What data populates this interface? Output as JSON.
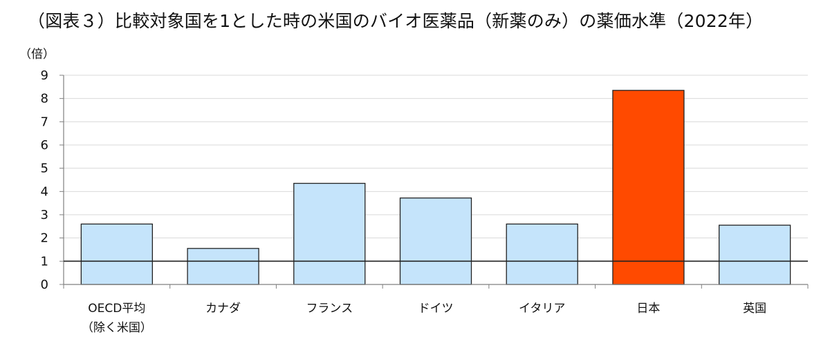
{
  "chart_data": {
    "type": "bar",
    "title": "（図表３）比較対象国を1とした時の米国のバイオ医薬品（新薬のみ）の薬価水準（2022年）",
    "ylabel": "（倍）",
    "xlabel": "",
    "ylim": [
      0,
      9
    ],
    "yticks": [
      0,
      1,
      2,
      3,
      4,
      5,
      6,
      7,
      8,
      9
    ],
    "grid": true,
    "reference_line": 1,
    "categories": [
      [
        "OECD平均",
        "（除く米国）"
      ],
      [
        "カナダ"
      ],
      [
        "フランス"
      ],
      [
        "ドイツ"
      ],
      [
        "イタリア"
      ],
      [
        "日本"
      ],
      [
        "英国"
      ]
    ],
    "values": [
      2.6,
      1.55,
      4.35,
      3.72,
      2.6,
      8.35,
      2.55
    ],
    "colors": {
      "default": "#c5e4fb",
      "highlight": "#ff4a00",
      "highlight_index": 5,
      "edge": "#222222",
      "grid": "#d9d9d9",
      "axis": "#7f7f7f"
    }
  }
}
